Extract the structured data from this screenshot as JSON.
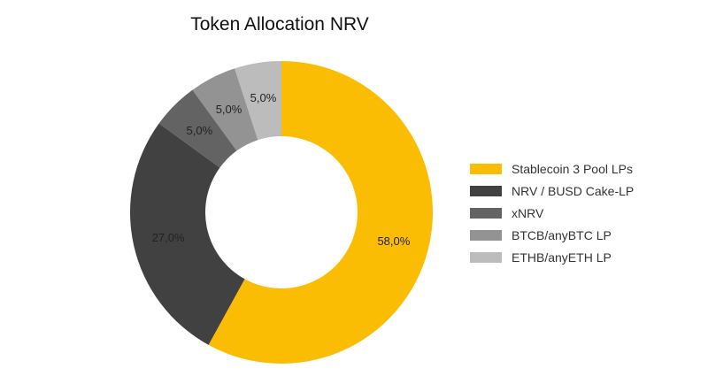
{
  "chart_data": {
    "type": "pie",
    "title": "Token Allocation NRV",
    "categories": [
      "Stablecoin 3 Pool LPs",
      "NRV / BUSD Cake-LP",
      "xNRV",
      "BTCB/anyBTC LP",
      "ETHB/anyETH LP"
    ],
    "values": [
      58.0,
      27.0,
      5.0,
      5.0,
      5.0
    ],
    "labels": [
      "58,0%",
      "27,0%",
      "5,0%",
      "5,0%",
      "5,0%"
    ],
    "colors": [
      "#fbbd04",
      "#414141",
      "#636363",
      "#939393",
      "#bcbcbc"
    ],
    "donut": true,
    "start": "top",
    "direction": "clockwise",
    "legend_position": "right"
  }
}
